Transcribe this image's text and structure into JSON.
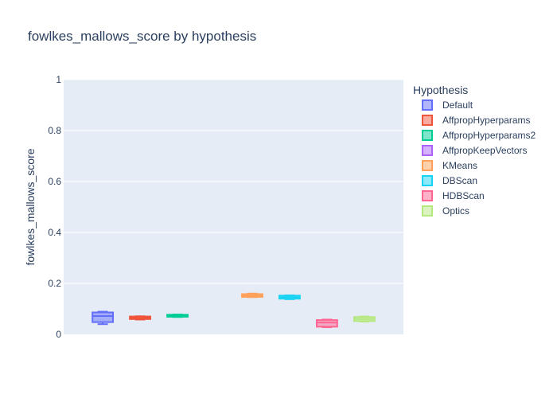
{
  "chart_data": {
    "type": "box",
    "title": "fowlkes_mallows_score by hypothesis",
    "xlabel": "",
    "ylabel": "fowlkes_mallows_score",
    "ylim": [
      0,
      1
    ],
    "yticks": [
      "0",
      "0.2",
      "0.4",
      "0.6",
      "0.8",
      "1"
    ],
    "grid": true,
    "legend_title": "Hypothesis",
    "legend_position": "right",
    "series": [
      {
        "name": "Default",
        "color": "#636efa",
        "min": 0.04,
        "q1": 0.048,
        "median": 0.072,
        "q3": 0.086,
        "max": 0.089
      },
      {
        "name": "AffpropHyperparams",
        "color": "#ef553b",
        "min": 0.058,
        "q1": 0.06,
        "median": 0.065,
        "q3": 0.07,
        "max": 0.071
      },
      {
        "name": "AffpropHyperparams2",
        "color": "#00cc96",
        "min": 0.068,
        "q1": 0.069,
        "median": 0.073,
        "q3": 0.077,
        "max": 0.078
      },
      {
        "name": "AffpropKeepVectors",
        "color": "#ab63fa",
        "min": null,
        "q1": null,
        "median": null,
        "q3": null,
        "max": null
      },
      {
        "name": "KMeans",
        "color": "#ffa15a",
        "min": 0.146,
        "q1": 0.147,
        "median": 0.152,
        "q3": 0.158,
        "max": 0.16
      },
      {
        "name": "DBScan",
        "color": "#19d3f3",
        "min": 0.138,
        "q1": 0.14,
        "median": 0.146,
        "q3": 0.152,
        "max": 0.153
      },
      {
        "name": "HDBScan",
        "color": "#ff6692",
        "min": 0.028,
        "q1": 0.03,
        "median": 0.046,
        "q3": 0.056,
        "max": 0.058
      },
      {
        "name": "Optics",
        "color": "#b6e880",
        "min": 0.05,
        "q1": 0.052,
        "median": 0.06,
        "q3": 0.068,
        "max": 0.07
      }
    ]
  }
}
